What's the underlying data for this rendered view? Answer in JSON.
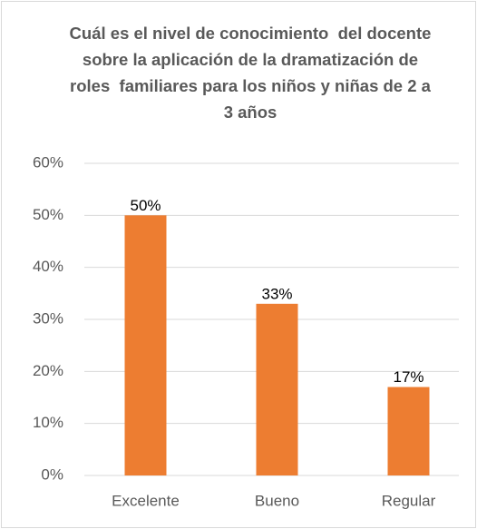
{
  "chart_data": {
    "type": "bar",
    "title": "Cuál es el nivel de conocimiento  del docente sobre la aplicación de la dramatización de roles  familiares para los niños y niñas de 2 a 3 años",
    "categories": [
      "Excelente",
      "Bueno",
      "Regular"
    ],
    "values": [
      50,
      33,
      17
    ],
    "value_labels": [
      "50%",
      "33%",
      "17%"
    ],
    "color": "#ed7d31",
    "ylim": [
      0,
      60
    ],
    "yticks": [
      {
        "value": 0,
        "label": "0%"
      },
      {
        "value": 10,
        "label": "10%"
      },
      {
        "value": 20,
        "label": "20%"
      },
      {
        "value": 30,
        "label": "30%"
      },
      {
        "value": 40,
        "label": "40%"
      },
      {
        "value": 50,
        "label": "50%"
      },
      {
        "value": 60,
        "label": "60%"
      }
    ],
    "grid": true
  }
}
